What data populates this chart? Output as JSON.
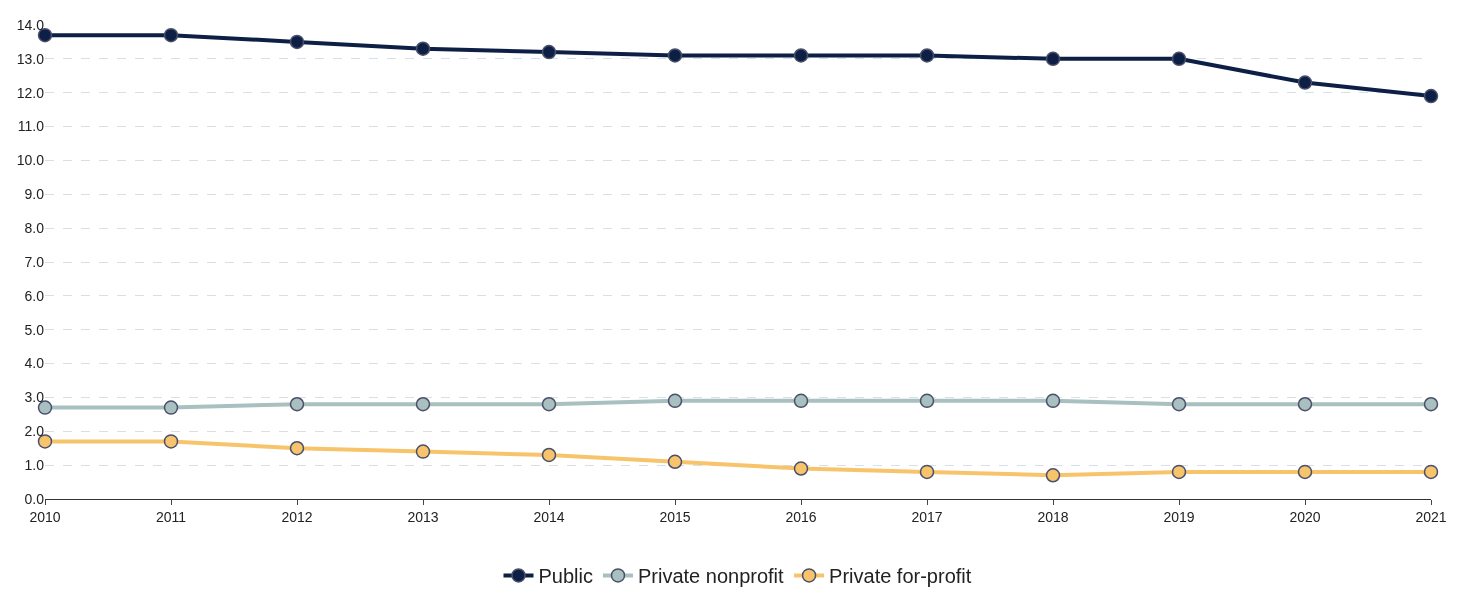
{
  "chart_data": {
    "type": "line",
    "x": [
      2010,
      2011,
      2012,
      2013,
      2014,
      2015,
      2016,
      2017,
      2018,
      2019,
      2020,
      2021
    ],
    "series": [
      {
        "name": "Public",
        "color": "#0d1f45",
        "values": [
          13.7,
          13.7,
          13.5,
          13.3,
          13.2,
          13.1,
          13.1,
          13.1,
          13.0,
          13.0,
          12.3,
          11.9
        ]
      },
      {
        "name": "Private nonprofit",
        "color": "#a8c0c0",
        "values": [
          2.7,
          2.7,
          2.8,
          2.8,
          2.8,
          2.9,
          2.9,
          2.9,
          2.9,
          2.8,
          2.8,
          2.8
        ]
      },
      {
        "name": "Private for-profit",
        "color": "#f7c46c",
        "values": [
          1.7,
          1.7,
          1.5,
          1.4,
          1.3,
          1.1,
          0.9,
          0.8,
          0.7,
          0.8,
          0.8,
          0.8
        ]
      }
    ],
    "xlim": [
      2010,
      2021
    ],
    "xticks": [
      2010,
      2011,
      2012,
      2013,
      2014,
      2015,
      2016,
      2017,
      2018,
      2019,
      2020,
      2021
    ],
    "ylim": [
      0,
      14
    ],
    "yticks": [
      {
        "value": 0,
        "label": "0.0"
      },
      {
        "value": 1,
        "label": "1.0"
      },
      {
        "value": 2,
        "label": "2.0"
      },
      {
        "value": 3,
        "label": "3.0"
      },
      {
        "value": 4,
        "label": "4.0"
      },
      {
        "value": 5,
        "label": "5.0"
      },
      {
        "value": 6,
        "label": "6.0"
      },
      {
        "value": 7,
        "label": "7.0"
      },
      {
        "value": 8,
        "label": "8.0"
      },
      {
        "value": 9,
        "label": "9.0"
      },
      {
        "value": 10,
        "label": "10.0"
      },
      {
        "value": 11,
        "label": "11.0"
      },
      {
        "value": 12,
        "label": "12.0"
      },
      {
        "value": 13,
        "label": "13.0"
      },
      {
        "value": 14,
        "label": "14.0"
      }
    ],
    "grid": "y",
    "legend": "bottom",
    "marker": "circle",
    "line_style": "solid"
  }
}
